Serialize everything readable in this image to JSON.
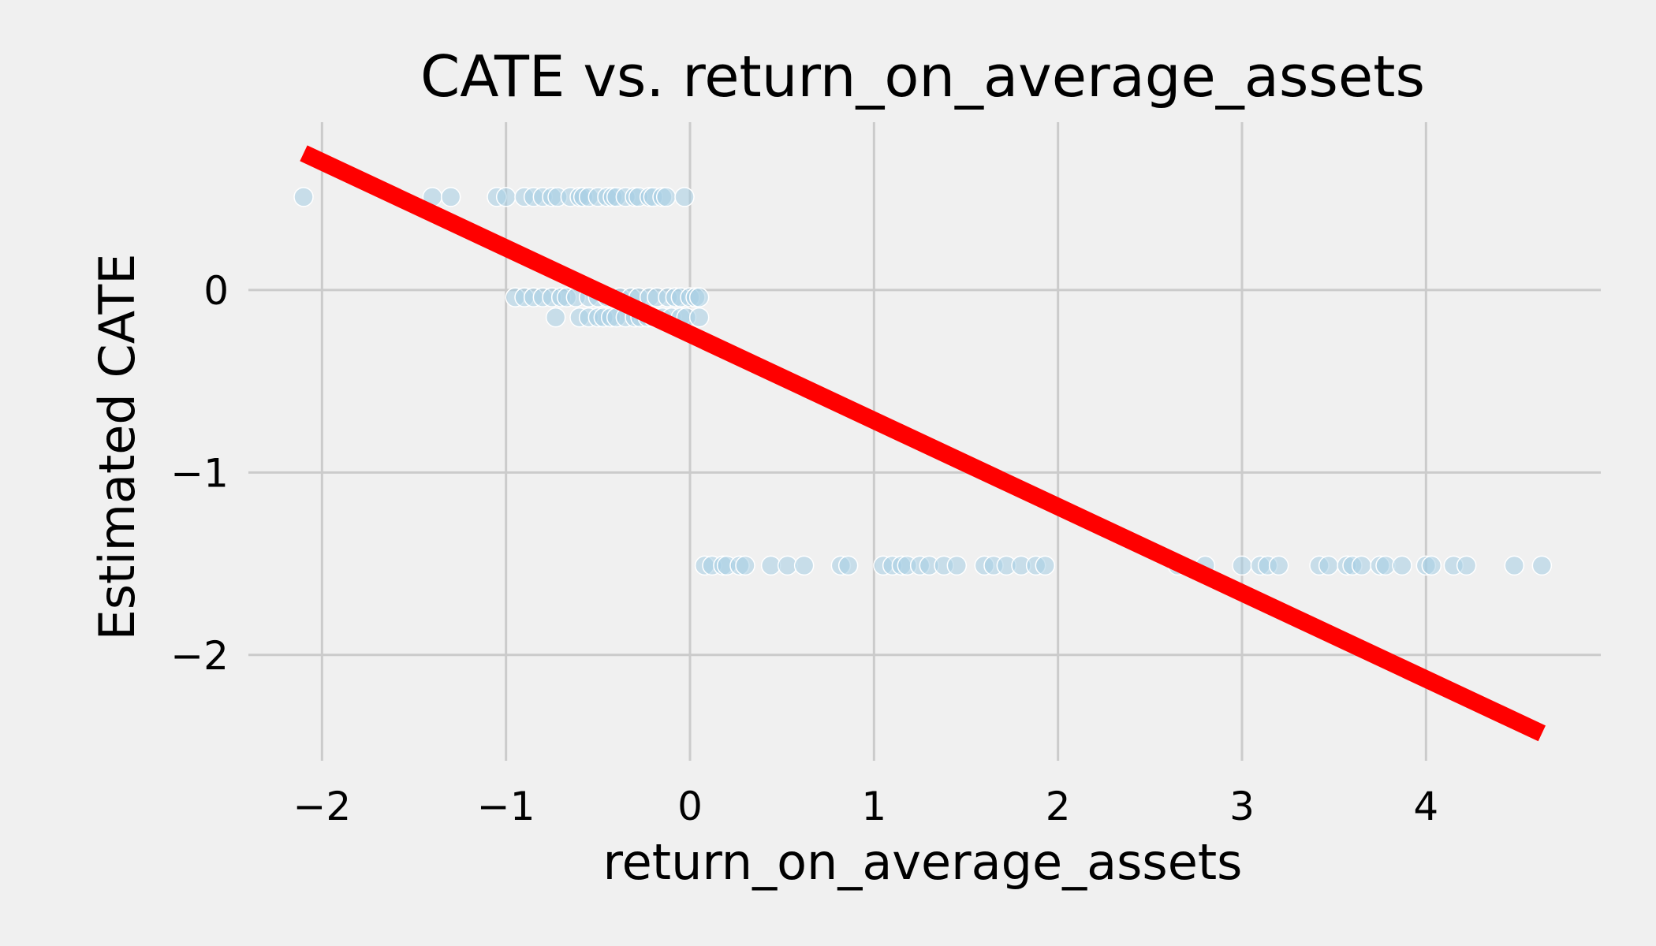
{
  "chart_data": {
    "type": "scatter",
    "title": "CATE vs. return_on_average_assets",
    "xlabel": "return_on_average_assets",
    "ylabel": "Estimated CATE",
    "xlim": [
      -2.4,
      4.95
    ],
    "ylim": [
      -2.58,
      0.92
    ],
    "xticks": [
      -2,
      -1,
      0,
      1,
      2,
      3,
      4
    ],
    "xtick_labels": [
      "−2",
      "−1",
      "0",
      "1",
      "2",
      "3",
      "4"
    ],
    "yticks": [
      0,
      -1,
      -2
    ],
    "ytick_labels": [
      "0",
      "−1",
      "−2"
    ],
    "grid": true,
    "colors": {
      "points": "#a6cee3",
      "line": "#ff0000",
      "background": "#f0f0f0",
      "grid": "#cbcbcb"
    },
    "points": [
      {
        "x": -2.1,
        "y": 0.51
      },
      {
        "x": -1.4,
        "y": 0.51
      },
      {
        "x": -1.3,
        "y": 0.51
      },
      {
        "x": -1.05,
        "y": 0.51
      },
      {
        "x": -1.0,
        "y": 0.51
      },
      {
        "x": -0.9,
        "y": 0.51
      },
      {
        "x": -0.85,
        "y": 0.51
      },
      {
        "x": -0.8,
        "y": 0.51
      },
      {
        "x": -0.75,
        "y": 0.51
      },
      {
        "x": -0.72,
        "y": 0.51
      },
      {
        "x": -0.65,
        "y": 0.51
      },
      {
        "x": -0.6,
        "y": 0.51
      },
      {
        "x": -0.58,
        "y": 0.51
      },
      {
        "x": -0.55,
        "y": 0.51
      },
      {
        "x": -0.5,
        "y": 0.51
      },
      {
        "x": -0.45,
        "y": 0.51
      },
      {
        "x": -0.42,
        "y": 0.51
      },
      {
        "x": -0.4,
        "y": 0.51
      },
      {
        "x": -0.35,
        "y": 0.51
      },
      {
        "x": -0.3,
        "y": 0.51
      },
      {
        "x": -0.28,
        "y": 0.51
      },
      {
        "x": -0.22,
        "y": 0.51
      },
      {
        "x": -0.2,
        "y": 0.51
      },
      {
        "x": -0.15,
        "y": 0.51
      },
      {
        "x": -0.13,
        "y": 0.51
      },
      {
        "x": -0.03,
        "y": 0.51
      },
      {
        "x": -0.95,
        "y": -0.04
      },
      {
        "x": -0.9,
        "y": -0.04
      },
      {
        "x": -0.85,
        "y": -0.04
      },
      {
        "x": -0.8,
        "y": -0.04
      },
      {
        "x": -0.75,
        "y": -0.04
      },
      {
        "x": -0.7,
        "y": -0.04
      },
      {
        "x": -0.67,
        "y": -0.04
      },
      {
        "x": -0.62,
        "y": -0.04
      },
      {
        "x": -0.55,
        "y": -0.04
      },
      {
        "x": -0.5,
        "y": -0.04
      },
      {
        "x": -0.45,
        "y": -0.04
      },
      {
        "x": -0.38,
        "y": -0.04
      },
      {
        "x": -0.32,
        "y": -0.04
      },
      {
        "x": -0.28,
        "y": -0.04
      },
      {
        "x": -0.22,
        "y": -0.04
      },
      {
        "x": -0.18,
        "y": -0.04
      },
      {
        "x": -0.12,
        "y": -0.04
      },
      {
        "x": -0.08,
        "y": -0.04
      },
      {
        "x": -0.05,
        "y": -0.04
      },
      {
        "x": 0.0,
        "y": -0.04
      },
      {
        "x": 0.03,
        "y": -0.04
      },
      {
        "x": 0.05,
        "y": -0.04
      },
      {
        "x": -0.73,
        "y": -0.15
      },
      {
        "x": -0.6,
        "y": -0.15
      },
      {
        "x": -0.55,
        "y": -0.15
      },
      {
        "x": -0.5,
        "y": -0.15
      },
      {
        "x": -0.47,
        "y": -0.15
      },
      {
        "x": -0.43,
        "y": -0.15
      },
      {
        "x": -0.4,
        "y": -0.15
      },
      {
        "x": -0.35,
        "y": -0.15
      },
      {
        "x": -0.3,
        "y": -0.15
      },
      {
        "x": -0.27,
        "y": -0.15
      },
      {
        "x": -0.23,
        "y": -0.15
      },
      {
        "x": -0.2,
        "y": -0.15
      },
      {
        "x": -0.15,
        "y": -0.15
      },
      {
        "x": -0.1,
        "y": -0.15
      },
      {
        "x": -0.05,
        "y": -0.15
      },
      {
        "x": -0.02,
        "y": -0.15
      },
      {
        "x": 0.05,
        "y": -0.15
      },
      {
        "x": 0.08,
        "y": -1.51
      },
      {
        "x": 0.12,
        "y": -1.51
      },
      {
        "x": 0.18,
        "y": -1.51
      },
      {
        "x": 0.2,
        "y": -1.51
      },
      {
        "x": 0.27,
        "y": -1.51
      },
      {
        "x": 0.3,
        "y": -1.51
      },
      {
        "x": 0.44,
        "y": -1.51
      },
      {
        "x": 0.53,
        "y": -1.51
      },
      {
        "x": 0.62,
        "y": -1.51
      },
      {
        "x": 0.82,
        "y": -1.51
      },
      {
        "x": 0.86,
        "y": -1.51
      },
      {
        "x": 1.05,
        "y": -1.51
      },
      {
        "x": 1.1,
        "y": -1.51
      },
      {
        "x": 1.15,
        "y": -1.51
      },
      {
        "x": 1.18,
        "y": -1.51
      },
      {
        "x": 1.25,
        "y": -1.51
      },
      {
        "x": 1.3,
        "y": -1.51
      },
      {
        "x": 1.38,
        "y": -1.51
      },
      {
        "x": 1.45,
        "y": -1.51
      },
      {
        "x": 1.6,
        "y": -1.51
      },
      {
        "x": 1.65,
        "y": -1.51
      },
      {
        "x": 1.72,
        "y": -1.51
      },
      {
        "x": 1.8,
        "y": -1.51
      },
      {
        "x": 1.88,
        "y": -1.51
      },
      {
        "x": 1.93,
        "y": -1.51
      },
      {
        "x": 2.65,
        "y": -1.51
      },
      {
        "x": 2.8,
        "y": -1.51
      },
      {
        "x": 3.0,
        "y": -1.51
      },
      {
        "x": 3.1,
        "y": -1.51
      },
      {
        "x": 3.14,
        "y": -1.51
      },
      {
        "x": 3.2,
        "y": -1.51
      },
      {
        "x": 3.42,
        "y": -1.51
      },
      {
        "x": 3.47,
        "y": -1.51
      },
      {
        "x": 3.57,
        "y": -1.51
      },
      {
        "x": 3.6,
        "y": -1.51
      },
      {
        "x": 3.65,
        "y": -1.51
      },
      {
        "x": 3.75,
        "y": -1.51
      },
      {
        "x": 3.78,
        "y": -1.51
      },
      {
        "x": 3.87,
        "y": -1.51
      },
      {
        "x": 4.0,
        "y": -1.51
      },
      {
        "x": 4.03,
        "y": -1.51
      },
      {
        "x": 4.15,
        "y": -1.51
      },
      {
        "x": 4.22,
        "y": -1.51
      },
      {
        "x": 4.48,
        "y": -1.51
      },
      {
        "x": 4.63,
        "y": -1.51
      }
    ],
    "fit_line": {
      "x": [
        -2.1,
        4.63
      ],
      "y": [
        0.75,
        -2.43
      ]
    }
  }
}
